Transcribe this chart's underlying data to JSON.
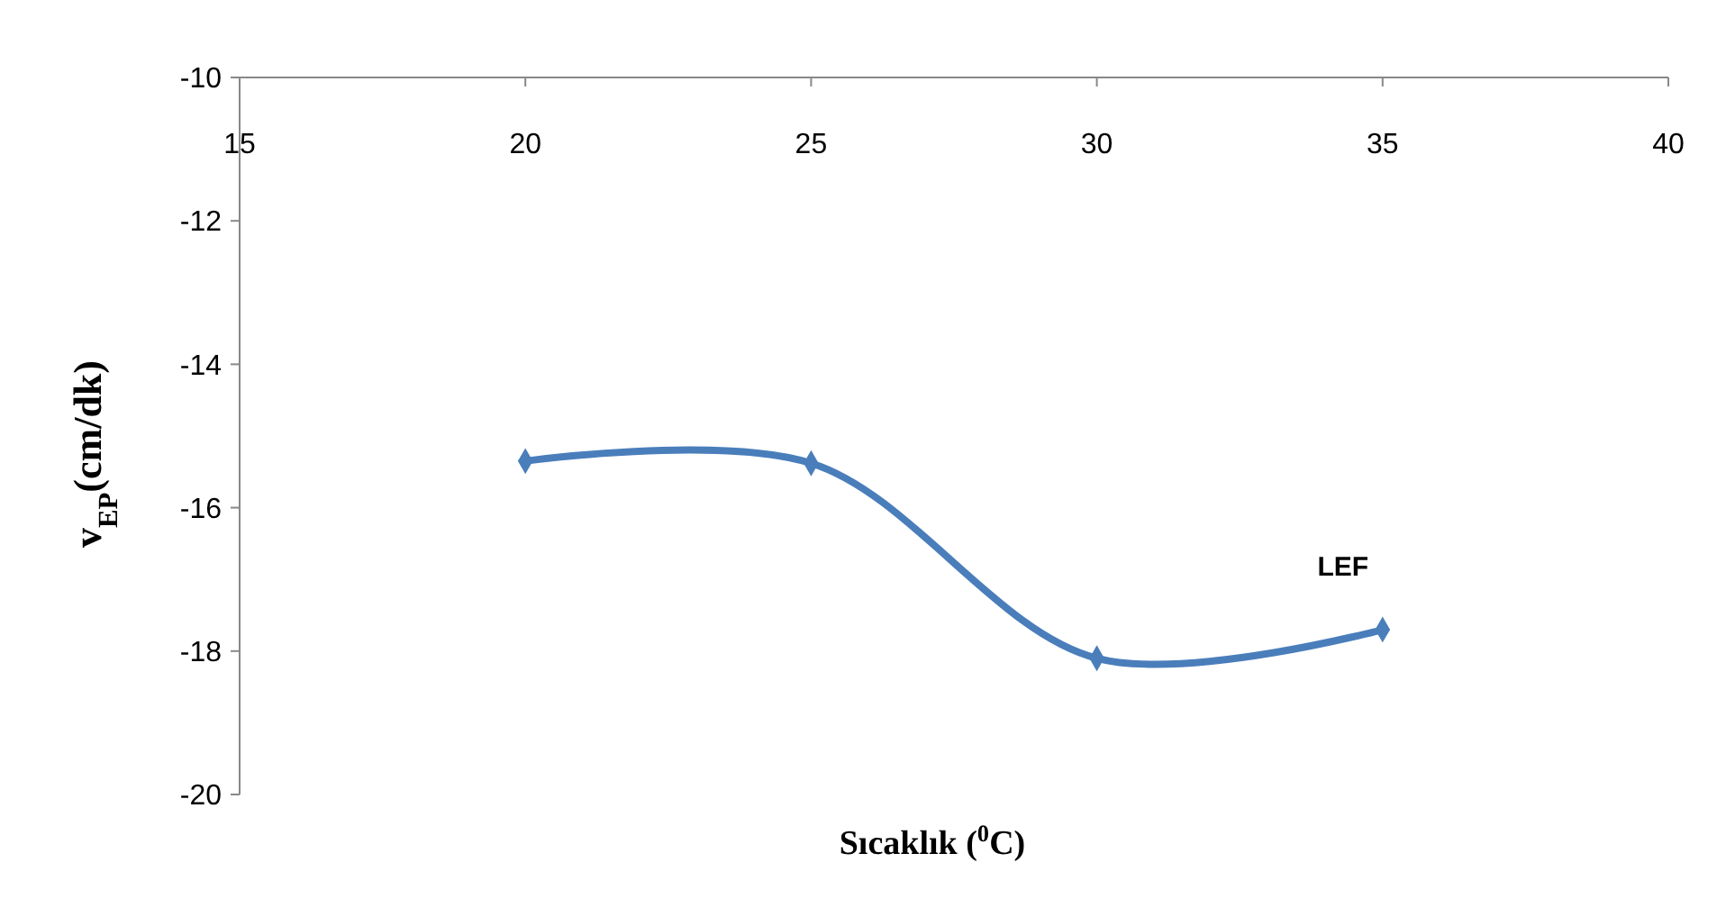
{
  "chart_data": {
    "type": "line",
    "xlabel": "Sıcaklık ($^{0}$C)",
    "ylabel": "v$_{EP}$(cm/dk)",
    "x": [
      20,
      25,
      30,
      35
    ],
    "series": [
      {
        "name": "LEF",
        "color": "#4a7ebb",
        "values": [
          -15.35,
          -15.38,
          -18.1,
          -17.7
        ]
      }
    ],
    "xlim": [
      15,
      40
    ],
    "xticks": [
      15,
      20,
      25,
      30,
      35,
      40
    ],
    "ylim": [
      -20,
      -10
    ],
    "yticks": [
      -20,
      -18,
      -16,
      -14,
      -12,
      -10
    ],
    "grid": false,
    "marker": "diamond",
    "line_style": "solid"
  }
}
